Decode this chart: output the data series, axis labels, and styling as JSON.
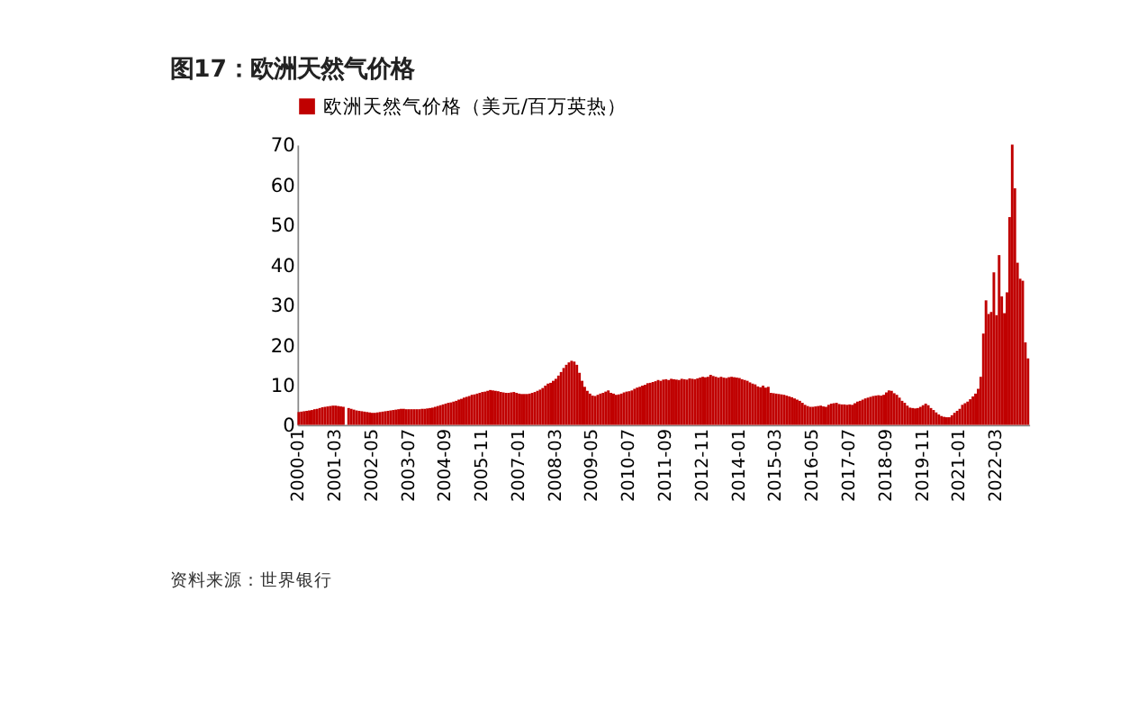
{
  "chart_data": {
    "type": "bar",
    "title": "图17：欧洲天然气价格",
    "categories": [
      "2000-01",
      null,
      null,
      null,
      null,
      null,
      null,
      null,
      null,
      null,
      null,
      null,
      null,
      null,
      "2001-03",
      null,
      null,
      null,
      null,
      null,
      null,
      null,
      null,
      null,
      null,
      null,
      null,
      null,
      "2002-05",
      null,
      null,
      null,
      null,
      null,
      null,
      null,
      null,
      null,
      null,
      null,
      null,
      null,
      "2003-07",
      null,
      null,
      null,
      null,
      null,
      null,
      null,
      null,
      null,
      null,
      null,
      null,
      null,
      "2004-09",
      null,
      null,
      null,
      null,
      null,
      null,
      null,
      null,
      null,
      null,
      null,
      null,
      null,
      "2005-11",
      null,
      null,
      null,
      null,
      null,
      null,
      null,
      null,
      null,
      null,
      null,
      null,
      null,
      "2007-01",
      null,
      null,
      null,
      null,
      null,
      null,
      null,
      null,
      null,
      null,
      null,
      null,
      null,
      "2008-03",
      null,
      null,
      null,
      null,
      null,
      null,
      null,
      null,
      null,
      null,
      null,
      null,
      null,
      "2009-05",
      null,
      null,
      null,
      null,
      null,
      null,
      null,
      null,
      null,
      null,
      null,
      null,
      null,
      "2010-07",
      null,
      null,
      null,
      null,
      null,
      null,
      null,
      null,
      null,
      null,
      null,
      null,
      null,
      "2011-09",
      null,
      null,
      null,
      null,
      null,
      null,
      null,
      null,
      null,
      null,
      null,
      null,
      null,
      "2012-11",
      null,
      null,
      null,
      null,
      null,
      null,
      null,
      null,
      null,
      null,
      null,
      null,
      null,
      "2014-01",
      null,
      null,
      null,
      null,
      null,
      null,
      null,
      null,
      null,
      null,
      null,
      null,
      null,
      "2015-03",
      null,
      null,
      null,
      null,
      null,
      null,
      null,
      null,
      null,
      null,
      null,
      null,
      null,
      "2016-05",
      null,
      null,
      null,
      null,
      null,
      null,
      null,
      null,
      null,
      null,
      null,
      null,
      null,
      "2017-07",
      null,
      null,
      null,
      null,
      null,
      null,
      null,
      null,
      null,
      null,
      null,
      null,
      null,
      "2018-09",
      null,
      null,
      null,
      null,
      null,
      null,
      null,
      null,
      null,
      null,
      null,
      null,
      null,
      "2019-11",
      null,
      null,
      null,
      null,
      null,
      null,
      null,
      null,
      null,
      null,
      null,
      null,
      null,
      "2021-01",
      null,
      null,
      null,
      null,
      null,
      null,
      null,
      null,
      null,
      null,
      null,
      null,
      null,
      "2022-03",
      null,
      null,
      null,
      null,
      null,
      null,
      null,
      null,
      null,
      null,
      null,
      null
    ],
    "series": [
      {
        "name": "欧洲天然气价格（美元/百万英热）",
        "color": "#c00000",
        "values": [
          3.2,
          3.3,
          3.4,
          3.5,
          3.6,
          3.7,
          3.9,
          4.0,
          4.2,
          4.4,
          4.5,
          4.6,
          4.7,
          4.8,
          4.8,
          4.7,
          4.6,
          4.5,
          null,
          4.2,
          4.0,
          3.8,
          3.6,
          3.5,
          3.4,
          3.3,
          3.2,
          3.1,
          3.0,
          3.0,
          3.1,
          3.2,
          3.3,
          3.4,
          3.5,
          3.6,
          3.7,
          3.8,
          3.9,
          4.0,
          4.0,
          3.9,
          3.9,
          3.9,
          3.9,
          3.9,
          3.9,
          4.0,
          4.0,
          4.1,
          4.2,
          4.3,
          4.5,
          4.7,
          4.9,
          5.1,
          5.3,
          5.5,
          5.6,
          5.8,
          6.0,
          6.3,
          6.5,
          6.8,
          7.0,
          7.2,
          7.5,
          7.6,
          7.8,
          8.0,
          8.2,
          8.3,
          8.5,
          8.7,
          8.6,
          8.5,
          8.4,
          8.2,
          8.1,
          8.0,
          8.0,
          8.1,
          8.2,
          8.0,
          7.8,
          7.7,
          7.7,
          7.7,
          7.8,
          8.0,
          8.2,
          8.5,
          8.8,
          9.2,
          9.8,
          10.3,
          10.5,
          11.0,
          11.5,
          12.3,
          13.2,
          14.2,
          15.0,
          15.6,
          16.0,
          15.8,
          15.0,
          13.0,
          11.0,
          9.5,
          8.5,
          7.8,
          7.3,
          7.2,
          7.5,
          7.8,
          8.0,
          8.3,
          8.6,
          8.0,
          7.8,
          7.5,
          7.6,
          7.8,
          8.1,
          8.3,
          8.4,
          8.6,
          9.0,
          9.3,
          9.5,
          9.8,
          10.0,
          10.4,
          10.5,
          10.7,
          10.9,
          11.2,
          11.0,
          11.3,
          11.4,
          11.2,
          11.5,
          11.4,
          11.3,
          11.2,
          11.5,
          11.4,
          11.3,
          11.6,
          11.5,
          11.4,
          11.6,
          11.8,
          12.0,
          11.9,
          12.0,
          12.5,
          12.2,
          12.0,
          11.8,
          12.0,
          11.8,
          11.7,
          11.9,
          12.0,
          11.9,
          11.8,
          11.7,
          11.4,
          11.2,
          11.0,
          10.6,
          10.3,
          10.1,
          9.6,
          9.4,
          9.8,
          9.3,
          9.5,
          8.0,
          7.9,
          7.8,
          7.7,
          7.6,
          7.5,
          7.3,
          7.1,
          6.9,
          6.6,
          6.3,
          6.0,
          5.5,
          5.0,
          4.7,
          4.5,
          4.5,
          4.6,
          4.7,
          4.8,
          4.6,
          4.5,
          5.0,
          5.3,
          5.4,
          5.5,
          5.2,
          5.1,
          5.1,
          5.0,
          5.1,
          5.0,
          5.4,
          5.8,
          6.0,
          6.3,
          6.6,
          6.8,
          7.0,
          7.2,
          7.3,
          7.4,
          7.3,
          7.5,
          8.1,
          8.6,
          8.5,
          7.9,
          7.5,
          6.8,
          6.0,
          5.5,
          4.8,
          4.3,
          4.2,
          4.1,
          4.2,
          4.5,
          4.9,
          5.3,
          4.9,
          4.2,
          3.7,
          3.1,
          2.6,
          2.2,
          2.0,
          1.9,
          1.9,
          2.4,
          3.0,
          3.5,
          4.0,
          5.0,
          5.4,
          5.8,
          6.4,
          7.1,
          7.8,
          9.0,
          12.0,
          22.8,
          31.1,
          27.7,
          28.2,
          38.1,
          27.4,
          42.4,
          32.1,
          27.9,
          33.1,
          51.9,
          70.0,
          59.1,
          40.5,
          36.5,
          36.0,
          20.6,
          16.6
        ]
      }
    ],
    "ylim": [
      0,
      70
    ],
    "yticks": [
      0,
      10,
      20,
      30,
      40,
      50,
      60,
      70
    ],
    "legend": "top",
    "grid": false,
    "annotations": [
      "资料来源：世界银行"
    ]
  }
}
